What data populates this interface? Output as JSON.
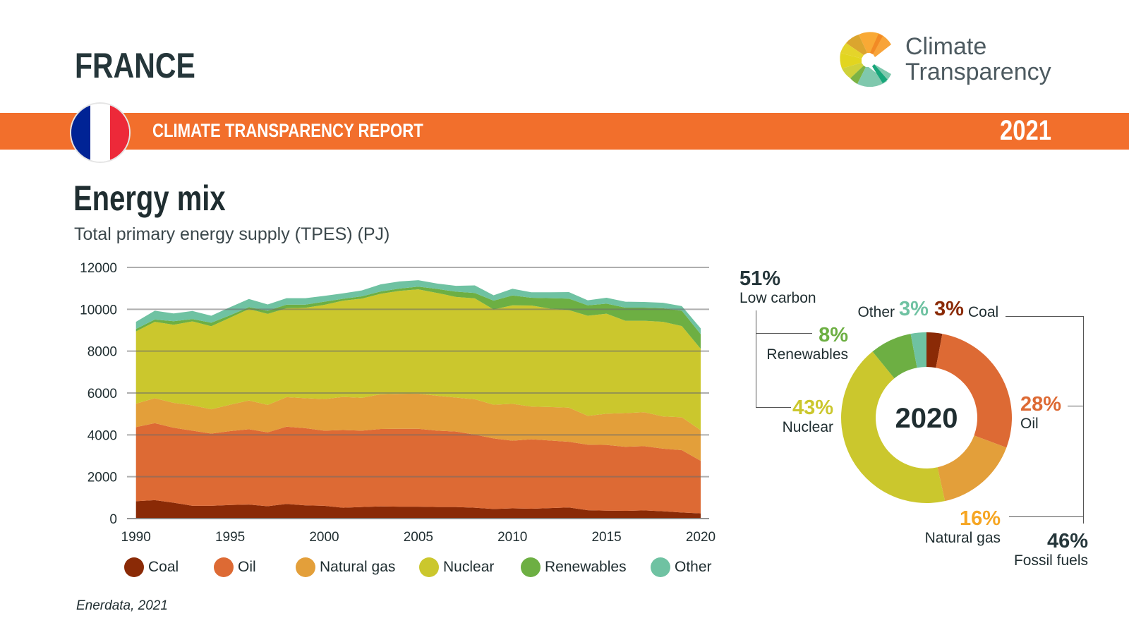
{
  "header": {
    "country": "FRANCE",
    "report_title": "CLIMATE TRANSPARENCY REPORT",
    "report_year": "2021",
    "logo_text_line1": "Climate",
    "logo_text_line2": "Transparency",
    "flag_colors": [
      "#002395",
      "#ffffff",
      "#ed2939"
    ],
    "band_color": "#f26f2c"
  },
  "section": {
    "title": "Energy mix",
    "subtitle": "Total primary energy supply (TPES) (PJ)"
  },
  "source": "Enerdata, 2021",
  "chart_data": [
    {
      "type": "area",
      "stacked": true,
      "title": "",
      "xlabel": "",
      "ylabel": "",
      "ylim": [
        0,
        12000
      ],
      "xlim": [
        1990,
        2020
      ],
      "grid": true,
      "legend_position": "bottom",
      "y_ticks": [
        "0",
        "2000",
        "4000",
        "6000",
        "8000",
        "10000",
        "12000"
      ],
      "x_ticks": [
        "1990",
        "1995",
        "2000",
        "2005",
        "2010",
        "2015",
        "2020"
      ],
      "x": [
        1990,
        1991,
        1992,
        1993,
        1994,
        1995,
        1996,
        1997,
        1998,
        1999,
        2000,
        2001,
        2002,
        2003,
        2004,
        2005,
        2006,
        2007,
        2008,
        2009,
        2010,
        2011,
        2012,
        2013,
        2014,
        2015,
        2016,
        2017,
        2018,
        2019,
        2020
      ],
      "series": [
        {
          "name": "Coal",
          "color": "#8a2a06",
          "values": [
            830,
            880,
            760,
            610,
            610,
            650,
            670,
            590,
            700,
            630,
            610,
            520,
            550,
            580,
            570,
            570,
            550,
            550,
            520,
            460,
            490,
            470,
            500,
            530,
            400,
            380,
            370,
            390,
            350,
            290,
            250
          ]
        },
        {
          "name": "Oil",
          "color": "#dd6a34",
          "values": [
            3540,
            3680,
            3580,
            3590,
            3450,
            3530,
            3600,
            3530,
            3690,
            3690,
            3590,
            3710,
            3650,
            3700,
            3720,
            3720,
            3650,
            3610,
            3490,
            3370,
            3230,
            3320,
            3230,
            3140,
            3130,
            3140,
            3060,
            3070,
            2990,
            2980,
            2510
          ]
        },
        {
          "name": "Natural gas",
          "color": "#e39f3a",
          "values": [
            1120,
            1190,
            1190,
            1210,
            1160,
            1260,
            1370,
            1310,
            1410,
            1430,
            1510,
            1580,
            1570,
            1660,
            1670,
            1680,
            1670,
            1620,
            1690,
            1610,
            1760,
            1560,
            1600,
            1630,
            1380,
            1490,
            1610,
            1620,
            1540,
            1570,
            1460
          ]
        },
        {
          "name": "Nuclear",
          "color": "#cbc72d",
          "values": [
            3450,
            3650,
            3730,
            4010,
            3970,
            4160,
            4370,
            4350,
            4250,
            4320,
            4500,
            4600,
            4740,
            4800,
            4920,
            4980,
            4910,
            4810,
            4820,
            4550,
            4710,
            4830,
            4700,
            4660,
            4780,
            4780,
            4410,
            4370,
            4520,
            4360,
            3890
          ]
        },
        {
          "name": "Renewables",
          "color": "#6daf43",
          "values": [
            120,
            110,
            170,
            110,
            170,
            110,
            90,
            150,
            170,
            150,
            150,
            90,
            110,
            110,
            110,
            130,
            190,
            250,
            260,
            420,
            470,
            370,
            500,
            550,
            500,
            480,
            630,
            630,
            650,
            730,
            700
          ]
        },
        {
          "name": "Other",
          "color": "#6fc2a2",
          "values": [
            340,
            420,
            370,
            390,
            330,
            390,
            390,
            300,
            310,
            310,
            280,
            260,
            280,
            340,
            340,
            310,
            260,
            280,
            360,
            260,
            320,
            260,
            280,
            310,
            240,
            280,
            280,
            270,
            260,
            220,
            280
          ]
        }
      ]
    },
    {
      "type": "pie",
      "donut": true,
      "center_label": "2020",
      "slices": [
        {
          "name": "Coal",
          "value": 3,
          "label": "3%",
          "color": "#8a2a06"
        },
        {
          "name": "Oil",
          "value": 28,
          "label": "28%",
          "color": "#dd6a34"
        },
        {
          "name": "Natural gas",
          "value": 16,
          "label": "16%",
          "color": "#e39f3a",
          "label_color": "#f6a623"
        },
        {
          "name": "Nuclear",
          "value": 43,
          "label": "43%",
          "color": "#cbc72d"
        },
        {
          "name": "Renewables",
          "value": 8,
          "label": "8%",
          "color": "#6daf43"
        },
        {
          "name": "Other",
          "value": 3,
          "label": "3%",
          "color": "#6fc2a2"
        }
      ],
      "groups": [
        {
          "name": "Low carbon",
          "label": "51%"
        },
        {
          "name": "Fossil fuels",
          "label": "46%"
        }
      ]
    }
  ]
}
